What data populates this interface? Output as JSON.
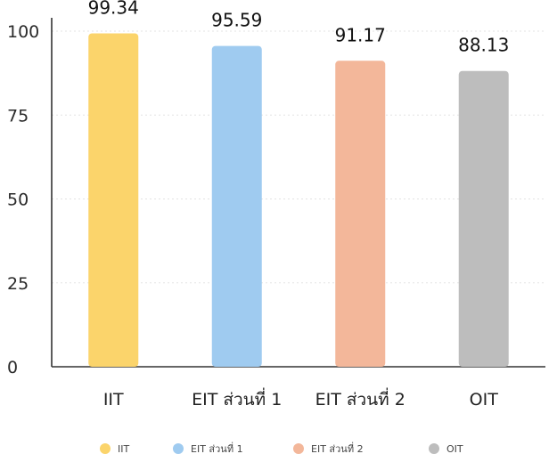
{
  "chart_data": {
    "type": "bar",
    "title": "",
    "xlabel": "",
    "ylabel": "",
    "categories": [
      "IIT",
      "EIT ส่วนที่ 1",
      "EIT ส่วนที่ 2",
      "OIT"
    ],
    "values": [
      99.34,
      95.59,
      91.17,
      88.13
    ],
    "data_labels": [
      "99.34",
      "95.59",
      "91.17",
      "88.13"
    ],
    "colors": [
      "#FBD46B",
      "#9FCBF0",
      "#F3B79A",
      "#BDBDBD"
    ],
    "ylim": [
      0,
      100
    ],
    "yticks": [
      0,
      25,
      50,
      75,
      100
    ],
    "ytick_labels": [
      "0",
      "25",
      "50",
      "75",
      "100"
    ],
    "grid": true,
    "legend": {
      "placement": "bottom",
      "entries": [
        "IIT",
        "EIT ส่วนที่ 1",
        "EIT ส่วนที่ 2",
        "OIT"
      ]
    }
  }
}
